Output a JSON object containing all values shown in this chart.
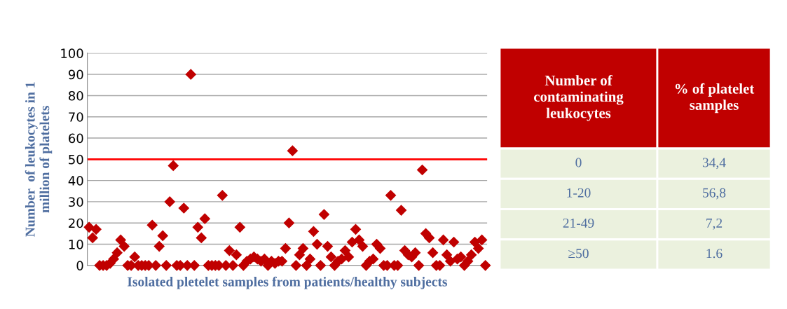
{
  "chart_data": [
    {
      "type": "scatter",
      "ylabel": "Number  of leukocytes in 1\nmillion of platelets",
      "xlabel": "Isolated pletelet samples from patients/healthy subjects",
      "categories": [
        null,
        null,
        null,
        null,
        null,
        null,
        null,
        null,
        null,
        null,
        null,
        null,
        null,
        null,
        null,
        null,
        null,
        null,
        null,
        null,
        null,
        null,
        null,
        null,
        null,
        null,
        null,
        null,
        null,
        null,
        null,
        null,
        null,
        null,
        null,
        null,
        null,
        null,
        null,
        null,
        null,
        null,
        null,
        null,
        null,
        null,
        null,
        null,
        null,
        null,
        null,
        null,
        null,
        null,
        null,
        null,
        null,
        null,
        null,
        null,
        null,
        null,
        null,
        null,
        null,
        null,
        null,
        null,
        null,
        null,
        null,
        null,
        null,
        null,
        null,
        null,
        null,
        null,
        null,
        null,
        null,
        null,
        null,
        null,
        null,
        null,
        null,
        null,
        null,
        null,
        null,
        null,
        null,
        null,
        null,
        null,
        null,
        null,
        null,
        null,
        null,
        null,
        null,
        null,
        null,
        null,
        null,
        null,
        null,
        null,
        null,
        null,
        null,
        null
      ],
      "series": [
        {
          "color": "#c00000",
          "values": [
            18,
            13,
            17,
            0,
            0,
            0,
            1,
            3,
            6,
            12,
            9,
            0,
            0,
            4,
            0,
            0,
            0,
            0,
            19,
            0,
            9,
            14,
            0,
            30,
            47,
            0,
            0,
            27,
            0,
            90,
            0,
            18,
            13,
            22,
            0,
            0,
            0,
            0,
            33,
            0,
            7,
            0,
            5,
            18,
            0,
            2,
            3,
            4,
            3,
            2,
            3,
            0,
            2,
            1,
            2,
            2,
            8,
            20,
            54,
            0,
            5,
            8,
            0,
            3,
            16,
            10,
            0,
            24,
            9,
            4,
            0,
            2,
            3,
            7,
            4,
            11,
            17,
            12,
            9,
            0,
            2,
            3,
            10,
            8,
            0,
            0,
            33,
            0,
            0,
            26,
            7,
            5,
            4,
            6,
            0,
            45,
            15,
            13,
            6,
            0,
            0,
            12,
            5,
            2,
            11,
            3,
            4,
            0,
            2,
            5,
            11,
            8,
            12,
            0
          ]
        }
      ],
      "marker": "diamond",
      "ylim": [
        0,
        100
      ],
      "yticks": [
        0,
        10,
        20,
        30,
        40,
        50,
        60,
        70,
        80,
        90,
        100
      ],
      "grid": "y",
      "ref_lines": [
        {
          "axis": "y",
          "value": 50,
          "color": "#ff0000"
        }
      ]
    },
    {
      "type": "other",
      "annotations": [
        "Number of\ncontaminating\nleukocytes",
        "% of platelet\nsamples"
      ],
      "categories": [
        "0",
        "1-20",
        "21-49",
        "≥50"
      ],
      "values": [
        34.4,
        56.8,
        7.2,
        1.6
      ],
      "value_labels": [
        "34,4",
        "56,8",
        "7,2",
        "1.6"
      ]
    }
  ]
}
